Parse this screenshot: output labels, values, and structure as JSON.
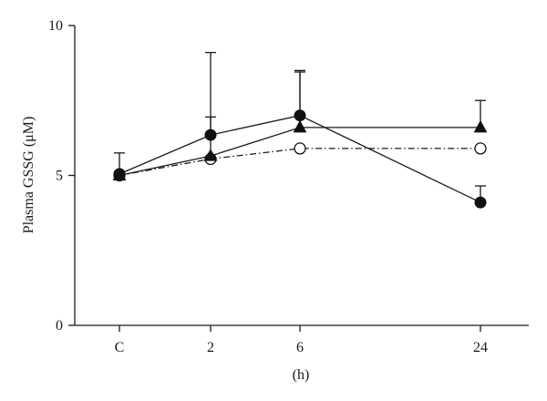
{
  "chart_data": {
    "type": "line",
    "title": "",
    "ylabel": "Plasma GSSG (μM)",
    "xlabel": "(h)",
    "x_tick_labels": [
      "C",
      "2",
      "6",
      "24"
    ],
    "x_hours": [
      0,
      2,
      6,
      24
    ],
    "ylim": [
      0,
      10
    ],
    "yticks": [
      0,
      5,
      10
    ],
    "grid": false,
    "legend": "none",
    "series": [
      {
        "marker": "filled-circle",
        "line_style": "solid",
        "values": [
          5.05,
          6.35,
          7.0,
          4.1
        ],
        "error_upper": [
          5.75,
          9.1,
          8.5,
          4.65
        ]
      },
      {
        "marker": "filled-triangle",
        "line_style": "solid",
        "values": [
          5.0,
          5.65,
          6.6,
          6.6
        ],
        "error_upper": [
          5.0,
          6.95,
          8.45,
          7.5
        ]
      },
      {
        "marker": "open-circle",
        "line_style": "dash-dot",
        "values": [
          5.0,
          5.55,
          5.9,
          5.9
        ],
        "error_upper": [
          null,
          null,
          null,
          null
        ]
      }
    ]
  }
}
